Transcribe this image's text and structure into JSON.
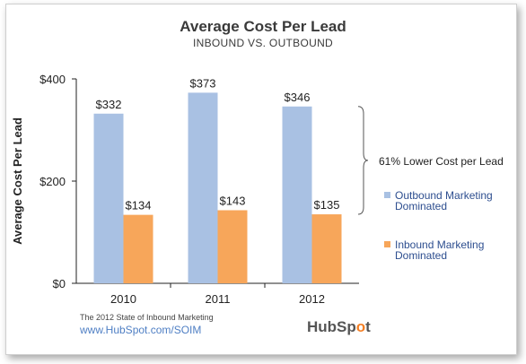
{
  "chart_data": {
    "type": "bar",
    "title": "Average Cost Per Lead",
    "subtitle": "INBOUND VS. OUTBOUND",
    "ylabel": "Average Cost Per Lead",
    "xlabel": "",
    "categories": [
      "2010",
      "2011",
      "2012"
    ],
    "ylim": [
      0,
      400
    ],
    "yticks": [
      {
        "value": 0,
        "label": "$0"
      },
      {
        "value": 200,
        "label": "$200"
      },
      {
        "value": 400,
        "label": "$400"
      }
    ],
    "series": [
      {
        "name": "Outbound Marketing Dominated",
        "legend_lines": [
          "Outbound Marketing",
          "Dominated"
        ],
        "color": "#a9c1e3",
        "values": [
          332,
          373,
          346
        ],
        "labels": [
          "$332",
          "$373",
          "$346"
        ]
      },
      {
        "name": "Inbound Marketing Dominated",
        "legend_lines": [
          "Inbound Marketing",
          "Dominated"
        ],
        "color": "#f7a65a",
        "values": [
          134,
          143,
          135
        ],
        "labels": [
          "$134",
          "$143",
          "$135"
        ]
      }
    ],
    "annotation": "61% Lower Cost per Lead",
    "grid": false,
    "legend_position": "right"
  },
  "source": {
    "text": "The 2012 State of Inbound Marketing",
    "url": "www.HubSpot.com/SOIM"
  },
  "logo": {
    "text_before": "HubSp",
    "text_dot": "o",
    "text_after": "t"
  }
}
